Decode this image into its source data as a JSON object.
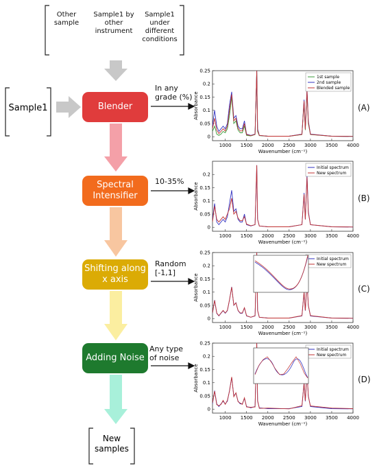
{
  "top_labels": [
    "Other sample",
    "Sample1 by other instrument",
    "Sample1 under different conditions"
  ],
  "input": "Sample1",
  "steps": [
    {
      "label": "Blender",
      "annotation": "In any grade (%)",
      "panel": "(A)"
    },
    {
      "label": "Spectral Intensifier",
      "annotation": "10-35%",
      "panel": "(B)"
    },
    {
      "label": "Shifting along x axis",
      "annotation": "Random [-1,1]",
      "panel": "(C)"
    },
    {
      "label": "Adding Noise",
      "annotation": "Any type of noise",
      "panel": "(D)"
    }
  ],
  "output": "New samples",
  "chart_data": [
    {
      "type": "line",
      "xlabel": "Wavenumber (cm⁻¹)",
      "ylabel": "Absorbance",
      "xlim": [
        700,
        4000
      ],
      "ylim": [
        -0.015,
        0.25
      ],
      "xticks": [
        1000,
        1500,
        2000,
        2500,
        3000,
        3500,
        4000
      ],
      "yticks": [
        0,
        0.05,
        0.1,
        0.15,
        0.2,
        0.25
      ],
      "legend": "upper right",
      "x": [
        700,
        750,
        800,
        850,
        900,
        950,
        1000,
        1050,
        1100,
        1150,
        1200,
        1250,
        1300,
        1350,
        1400,
        1450,
        1500,
        1600,
        1700,
        1740,
        1760,
        1800,
        2000,
        2500,
        2800,
        2850,
        2880,
        2920,
        2950,
        3000,
        3500,
        4000
      ],
      "series": [
        {
          "name": "1st sample",
          "color": "#3a9a3a",
          "values": [
            0.02,
            0.04,
            0.01,
            0.005,
            0.01,
            0.02,
            0.015,
            0.03,
            0.08,
            0.15,
            0.05,
            0.06,
            0.025,
            0.015,
            0.015,
            0.04,
            0.005,
            0.003,
            0.008,
            0.25,
            0.02,
            0.004,
            0.002,
            0.002,
            0.008,
            0.13,
            0.025,
            0.17,
            0.05,
            0.008,
            0.002,
            0.001
          ]
        },
        {
          "name": "2nd sample",
          "color": "#3030c0",
          "values": [
            0.04,
            0.1,
            0.04,
            0.02,
            0.03,
            0.04,
            0.03,
            0.05,
            0.12,
            0.17,
            0.07,
            0.08,
            0.04,
            0.03,
            0.03,
            0.06,
            0.01,
            0.005,
            0.01,
            0.25,
            0.03,
            0.005,
            0.002,
            0.002,
            0.01,
            0.14,
            0.03,
            0.18,
            0.06,
            0.01,
            0.002,
            0.001
          ]
        },
        {
          "name": "Blended sample",
          "color": "#c03030",
          "values": [
            0.03,
            0.07,
            0.025,
            0.012,
            0.02,
            0.03,
            0.022,
            0.04,
            0.1,
            0.16,
            0.06,
            0.07,
            0.032,
            0.022,
            0.022,
            0.05,
            0.008,
            0.004,
            0.009,
            0.25,
            0.025,
            0.005,
            0.002,
            0.002,
            0.009,
            0.135,
            0.028,
            0.175,
            0.055,
            0.009,
            0.002,
            0.001
          ]
        }
      ]
    },
    {
      "type": "line",
      "xlabel": "Wavenumber (cm⁻¹)",
      "ylabel": "Absorbance",
      "xlim": [
        700,
        4000
      ],
      "ylim": [
        -0.015,
        0.25
      ],
      "xticks": [
        1000,
        1500,
        2000,
        2500,
        3000,
        3500,
        4000
      ],
      "yticks": [
        0,
        0.05,
        0.1,
        0.15,
        0.2
      ],
      "legend": "upper right",
      "x": [
        700,
        750,
        800,
        850,
        900,
        950,
        1000,
        1050,
        1100,
        1150,
        1200,
        1250,
        1300,
        1350,
        1400,
        1450,
        1500,
        1600,
        1700,
        1740,
        1760,
        1800,
        2000,
        2500,
        2800,
        2850,
        2880,
        2920,
        2950,
        3000,
        3500,
        4000
      ],
      "series": [
        {
          "name": "Initial spectrum",
          "color": "#3030c0",
          "values": [
            0.03,
            0.09,
            0.02,
            0.01,
            0.02,
            0.03,
            0.02,
            0.04,
            0.09,
            0.14,
            0.06,
            0.07,
            0.03,
            0.02,
            0.02,
            0.05,
            0.01,
            0.005,
            0.01,
            0.235,
            0.03,
            0.005,
            0.002,
            0.002,
            0.01,
            0.13,
            0.03,
            0.2,
            0.06,
            0.01,
            0.002,
            0.001
          ]
        },
        {
          "name": "New spectrum",
          "color": "#c03030",
          "values": [
            0.02,
            0.08,
            0.03,
            0.02,
            0.03,
            0.04,
            0.03,
            0.05,
            0.07,
            0.11,
            0.05,
            0.06,
            0.035,
            0.025,
            0.025,
            0.04,
            0.012,
            0.006,
            0.01,
            0.235,
            0.03,
            0.005,
            0.002,
            0.002,
            0.01,
            0.125,
            0.03,
            0.19,
            0.055,
            0.01,
            0.002,
            0.001
          ]
        }
      ]
    },
    {
      "type": "line",
      "xlabel": "Wavenumber (cm⁻¹)",
      "ylabel": "Absorbance",
      "xlim": [
        700,
        4000
      ],
      "ylim": [
        -0.015,
        0.25
      ],
      "xticks": [
        1000,
        1500,
        2000,
        2500,
        3000,
        3500,
        4000
      ],
      "yticks": [
        0,
        0.05,
        0.1,
        0.15,
        0.2,
        0.25
      ],
      "legend": "upper right",
      "x": [
        700,
        750,
        800,
        850,
        900,
        950,
        1000,
        1050,
        1100,
        1150,
        1200,
        1250,
        1300,
        1350,
        1400,
        1450,
        1500,
        1600,
        1700,
        1740,
        1760,
        1800,
        2000,
        2500,
        2800,
        2850,
        2880,
        2920,
        2950,
        3000,
        3500,
        4000
      ],
      "series": [
        {
          "name": "Initial spectrum",
          "color": "#3030c0",
          "values": [
            0.02,
            0.07,
            0.02,
            0.01,
            0.02,
            0.03,
            0.02,
            0.03,
            0.07,
            0.12,
            0.05,
            0.06,
            0.03,
            0.02,
            0.02,
            0.04,
            0.01,
            0.005,
            0.01,
            0.25,
            0.03,
            0.005,
            0.002,
            0.002,
            0.01,
            0.1,
            0.03,
            0.14,
            0.05,
            0.01,
            0.002,
            0.001
          ]
        },
        {
          "name": "New spectrum",
          "color": "#c03030",
          "values": [
            0.021,
            0.069,
            0.021,
            0.011,
            0.021,
            0.031,
            0.021,
            0.031,
            0.071,
            0.119,
            0.051,
            0.059,
            0.031,
            0.021,
            0.021,
            0.041,
            0.011,
            0.005,
            0.011,
            0.25,
            0.031,
            0.005,
            0.002,
            0.002,
            0.011,
            0.1,
            0.031,
            0.14,
            0.049,
            0.011,
            0.002,
            0.001
          ]
        }
      ]
    },
    {
      "type": "line",
      "xlabel": "Wavenumber (cm⁻¹)",
      "ylabel": "Absorbance",
      "xlim": [
        700,
        4000
      ],
      "ylim": [
        -0.015,
        0.25
      ],
      "xticks": [
        1000,
        1500,
        2000,
        2500,
        3000,
        3500,
        4000
      ],
      "yticks": [
        0,
        0.05,
        0.1,
        0.15,
        0.2,
        0.25
      ],
      "legend": "upper right",
      "x": [
        700,
        750,
        800,
        850,
        900,
        950,
        1000,
        1050,
        1100,
        1150,
        1200,
        1250,
        1300,
        1350,
        1400,
        1450,
        1500,
        1600,
        1700,
        1740,
        1760,
        1800,
        2000,
        2500,
        2800,
        2850,
        2880,
        2920,
        2950,
        3000,
        3500,
        4000
      ],
      "series": [
        {
          "name": "Initial spectrum",
          "color": "#3030c0",
          "values": [
            0.02,
            0.07,
            0.02,
            0.01,
            0.02,
            0.03,
            0.02,
            0.03,
            0.07,
            0.12,
            0.05,
            0.06,
            0.03,
            0.02,
            0.02,
            0.04,
            0.01,
            0.005,
            0.01,
            0.25,
            0.03,
            0.005,
            0.002,
            0.002,
            0.01,
            0.1,
            0.03,
            0.14,
            0.05,
            0.01,
            0.002,
            0.001
          ]
        },
        {
          "name": "New spectrum",
          "color": "#c03030",
          "values": [
            0.024,
            0.068,
            0.017,
            0.013,
            0.018,
            0.033,
            0.018,
            0.033,
            0.068,
            0.122,
            0.047,
            0.062,
            0.028,
            0.023,
            0.018,
            0.043,
            0.008,
            0.007,
            0.008,
            0.25,
            0.033,
            0.003,
            0.004,
            0.001,
            0.013,
            0.098,
            0.032,
            0.142,
            0.048,
            0.012,
            0.004,
            0.002
          ]
        }
      ]
    }
  ]
}
